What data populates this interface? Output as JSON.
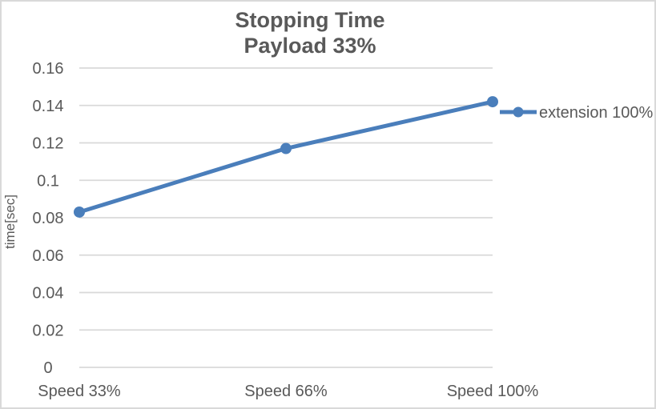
{
  "chart_data": {
    "type": "line",
    "title": "Stopping Time",
    "subtitle": "Payload 33%",
    "categories": [
      "Speed 33%",
      "Speed 66%",
      "Speed 100%"
    ],
    "series": [
      {
        "name": "extension 100%",
        "values": [
          0.083,
          0.117,
          0.142
        ]
      }
    ],
    "xlabel": "",
    "ylabel": "time[sec]",
    "ylim": [
      0,
      0.16
    ],
    "ytick_step": 0.02,
    "ytick_labels": [
      "0",
      "0.02",
      "0.04",
      "0.06",
      "0.08",
      "0.1",
      "0.12",
      "0.14",
      "0.16"
    ],
    "grid": "horizontal",
    "legend_position": "right",
    "marker": "circle",
    "colors": {
      "line": "#4A7EBB",
      "text": "#595959",
      "gridline": "#D9D9D9",
      "border": "#D9D9D9",
      "background": "#FFFFFF"
    }
  }
}
